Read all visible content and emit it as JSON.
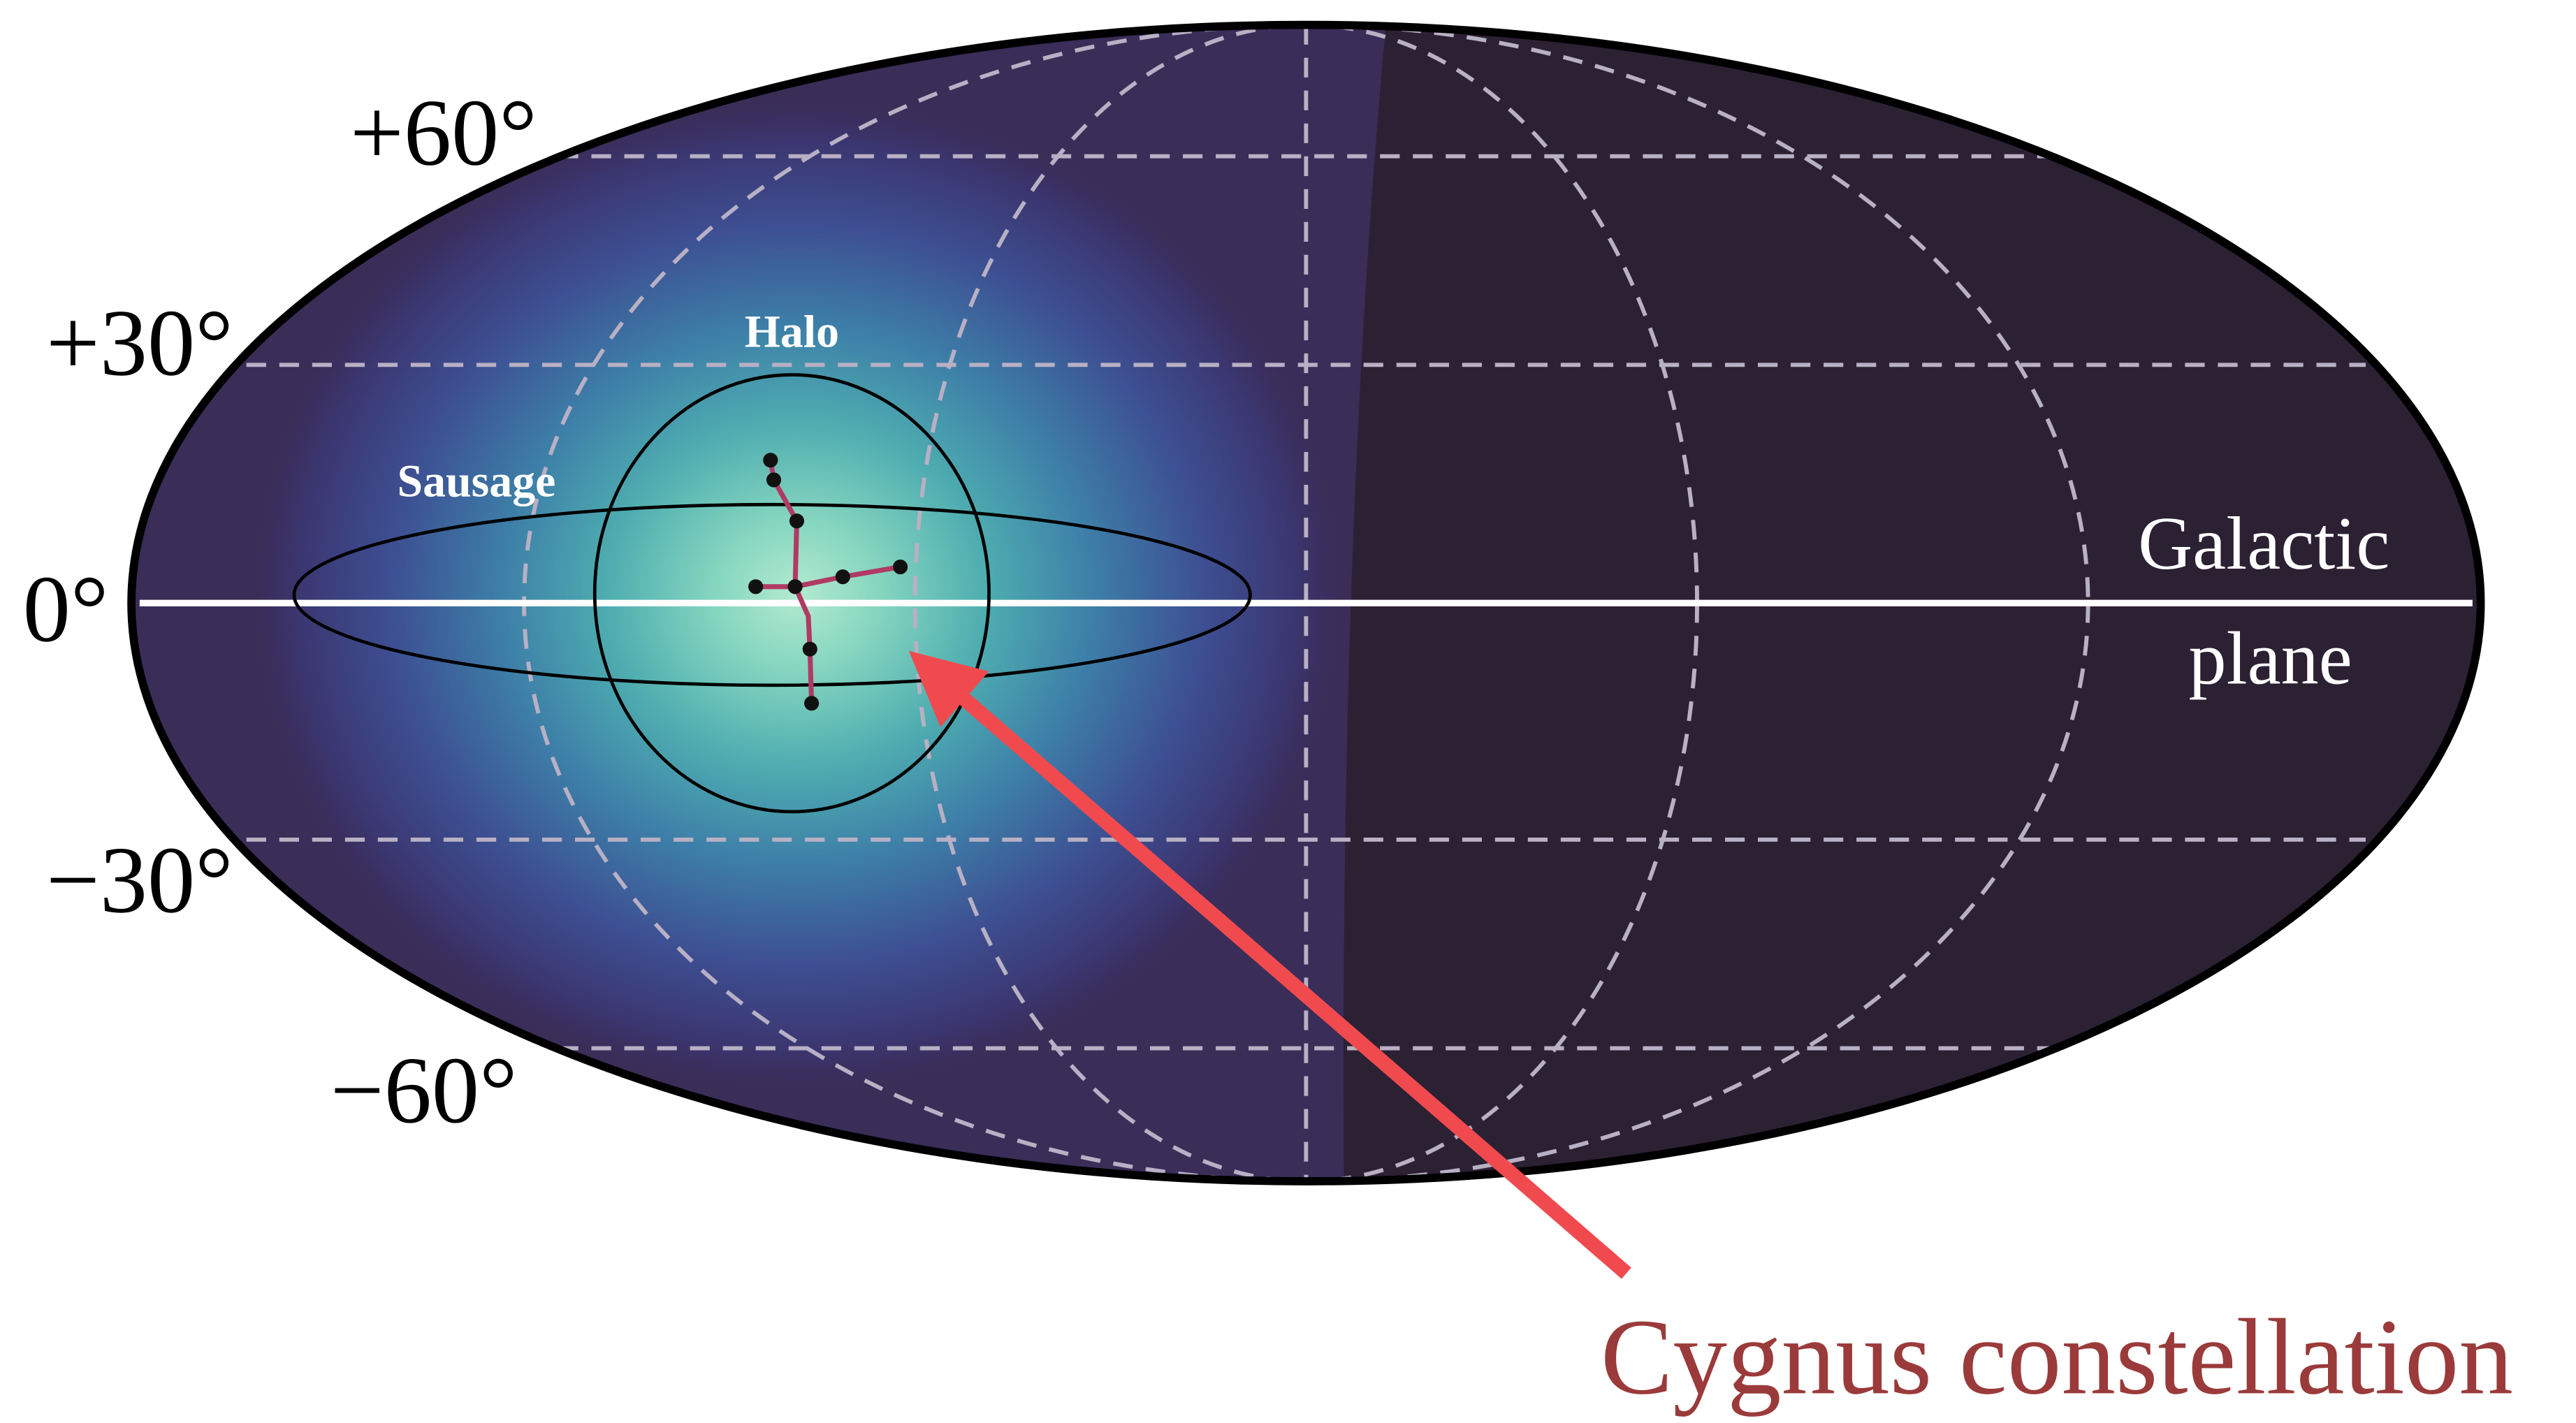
{
  "latitude_labels": [
    "+60°",
    "+30°",
    "0°",
    "−30°",
    "−60°"
  ],
  "regions": {
    "halo": "Halo",
    "sausage": "Sausage"
  },
  "galactic_plane_label": {
    "line1": "Galactic",
    "line2": "plane"
  },
  "annotation": "Cygnus constellation"
}
